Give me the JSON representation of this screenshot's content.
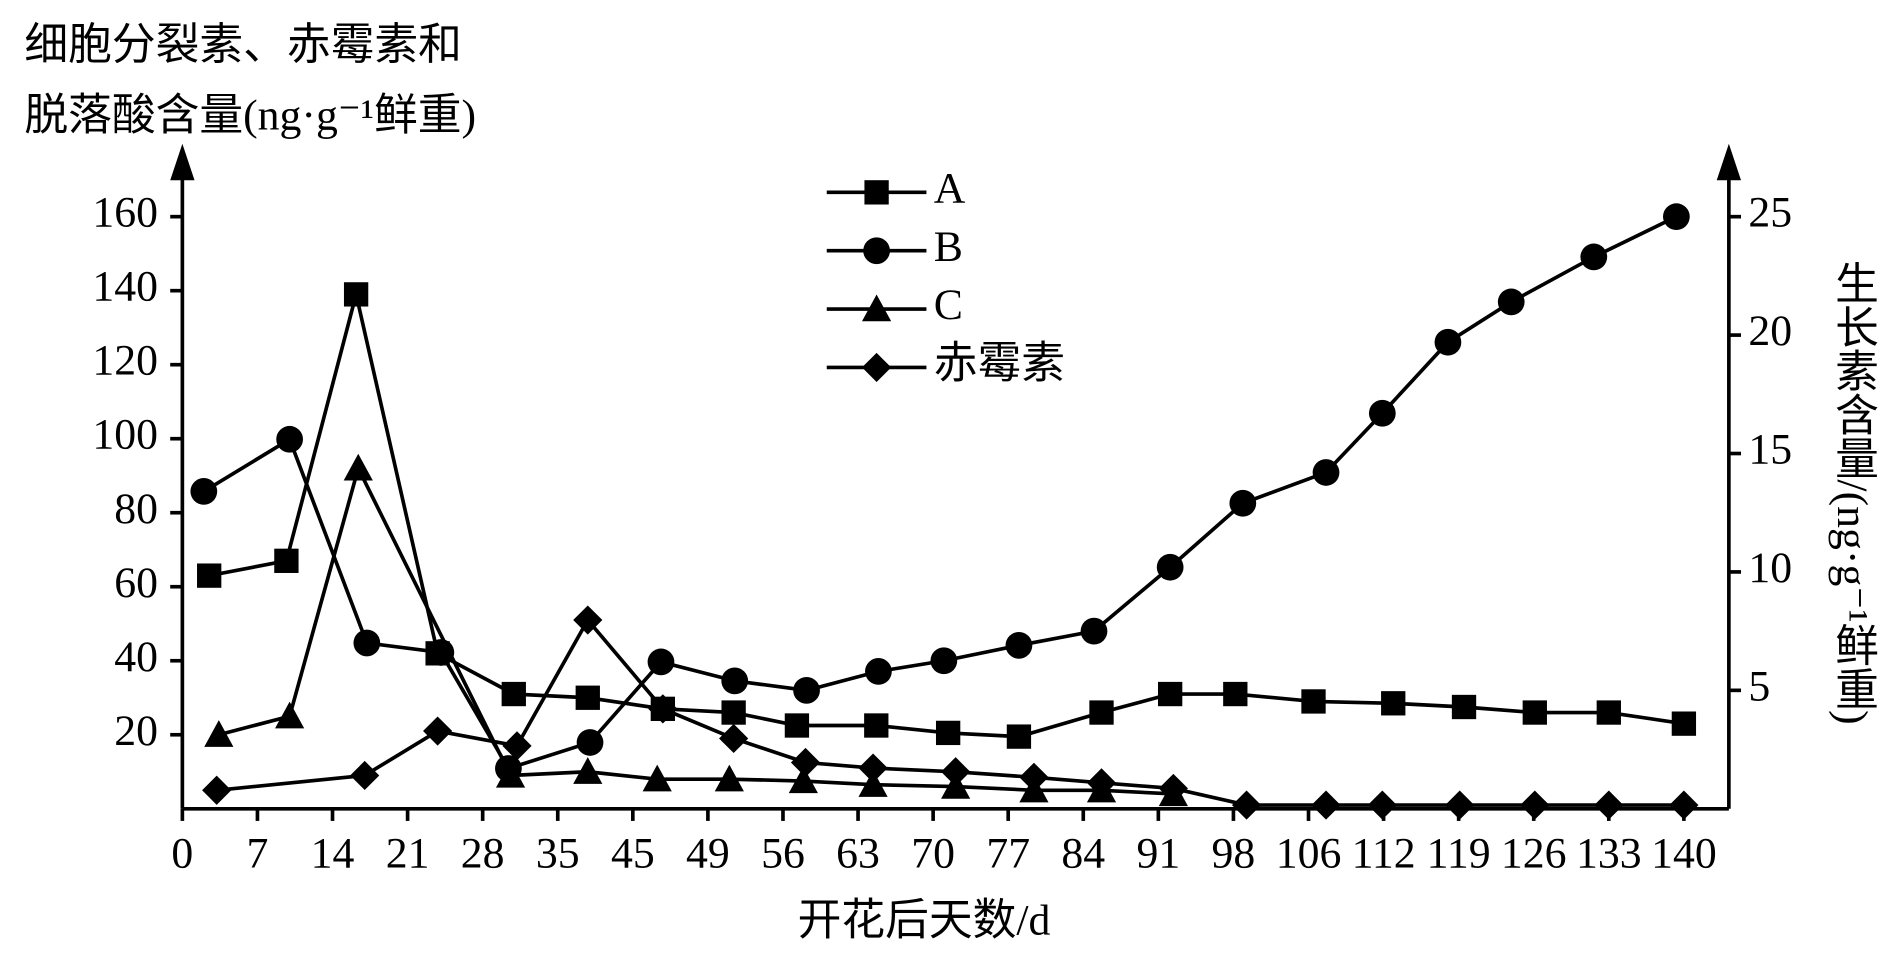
{
  "chart_data": {
    "type": "line",
    "ylabel": [
      "细胞分裂素、赤霉素和",
      "脱落酸含量(ng·g⁻¹鲜重)"
    ],
    "y2label": "生长素含量/(ng·g⁻¹鲜重)",
    "xlabel": "开花后天数/d",
    "xlim": [
      0,
      140
    ],
    "xticks": [
      0,
      7,
      14,
      21,
      28,
      35,
      45,
      49,
      56,
      63,
      70,
      77,
      84,
      91,
      98,
      106,
      112,
      119,
      126,
      133,
      140
    ],
    "ylim": [
      0,
      160
    ],
    "yticks": [
      20,
      40,
      60,
      80,
      100,
      120,
      140,
      160
    ],
    "y2lim": [
      0,
      25
    ],
    "y2ticks": [
      5,
      10,
      15,
      20,
      25
    ],
    "series": [
      {
        "name": "A",
        "color": "#000000",
        "marker": "square",
        "x": [
          2.5,
          9.7,
          16.2,
          23.8,
          30.9,
          39,
          46.6,
          51.4,
          57.3,
          64.7,
          71.4,
          78,
          85.7,
          92.1,
          98.2,
          106.4,
          112.9,
          119.5,
          126.1,
          133,
          140
        ],
        "values": [
          63,
          67,
          139,
          42,
          31,
          30,
          27,
          26,
          22.5,
          22.5,
          20.5,
          19.5,
          26,
          31,
          31,
          29,
          28.5,
          27.5,
          26,
          26,
          23
        ]
      },
      {
        "name": "B",
        "color": "#000000",
        "marker": "circle",
        "axis": "y2",
        "x": [
          2,
          10,
          17.2,
          24.1,
          30.4,
          39.3,
          46.5,
          51.5,
          58.2,
          64.9,
          71,
          78,
          85,
          92.1,
          99,
          107.4,
          111.9,
          118,
          123.9,
          131.6,
          139.3
        ],
        "values": [
          13.4,
          15.6,
          7.0,
          6.6,
          1.7,
          2.8,
          6.2,
          5.4,
          5.0,
          5.8,
          6.25,
          6.9,
          7.5,
          10.2,
          12.9,
          14.2,
          16.7,
          19.7,
          21.4,
          23.3,
          25
        ]
      },
      {
        "name": "C",
        "color": "#000000",
        "marker": "triangle",
        "x": [
          3.4,
          10,
          16.4,
          30.6,
          39,
          46.3,
          51,
          57.9,
          64.4,
          72.1,
          79.4,
          85.7,
          92.4
        ],
        "values": [
          20,
          25,
          92,
          9,
          10,
          8,
          8,
          7.5,
          6.5,
          6,
          5,
          5,
          4
        ]
      },
      {
        "name": "赤霉素",
        "color": "#000000",
        "marker": "diamond",
        "x": [
          3.2,
          17,
          23.8,
          31.2,
          39,
          46.6,
          51.4,
          58.1,
          64.4,
          72.1,
          79.4,
          85.7,
          92.4,
          99.4,
          107.4,
          111.9,
          119.1,
          126.1,
          133,
          140
        ],
        "values": [
          5,
          9,
          21,
          17,
          51,
          27,
          19,
          12.5,
          11,
          10,
          8.5,
          7,
          5.5,
          1,
          1,
          1,
          1,
          1,
          1,
          1
        ]
      }
    ]
  }
}
